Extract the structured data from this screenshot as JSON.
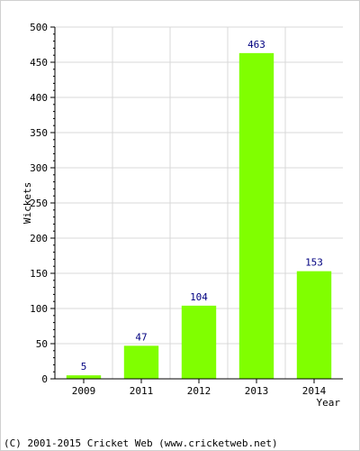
{
  "chart_data": {
    "type": "bar",
    "categories": [
      "2009",
      "2011",
      "2012",
      "2013",
      "2014"
    ],
    "values": [
      5,
      47,
      104,
      463,
      153
    ],
    "title": "",
    "xlabel": "Year",
    "ylabel": "Wickets",
    "ylim": [
      0,
      500
    ],
    "yticks": [
      0,
      50,
      100,
      150,
      200,
      250,
      300,
      350,
      400,
      450,
      500
    ],
    "grid": true,
    "legend": "none",
    "bar_color": "#80ff00",
    "label_color": "#000080"
  },
  "footer": {
    "copyright": "(C) 2001-2015 Cricket Web (www.cricketweb.net)"
  }
}
